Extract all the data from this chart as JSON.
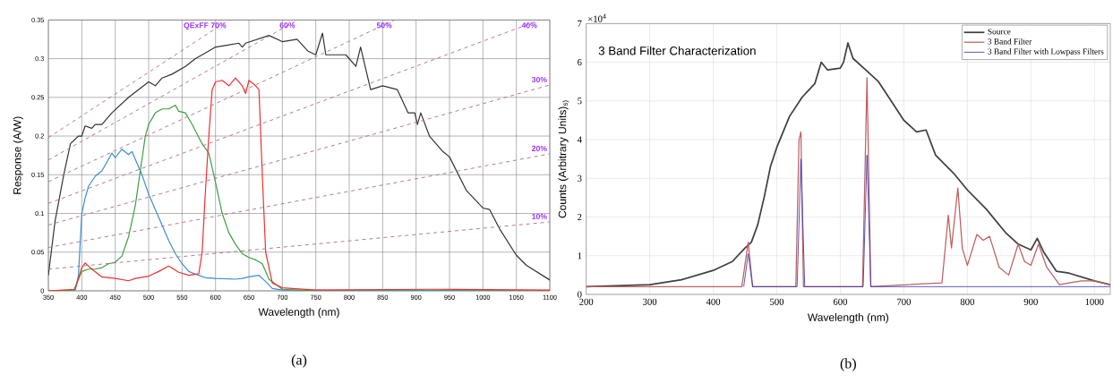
{
  "chart_data": [
    {
      "type": "line",
      "xlabel": "Wavelength (nm)",
      "ylabel": "Response (A/W)",
      "xlim": [
        350,
        1100
      ],
      "ylim": [
        0,
        0.35
      ],
      "xticks": [
        350,
        400,
        450,
        500,
        550,
        600,
        650,
        700,
        750,
        800,
        850,
        900,
        950,
        1000,
        1050,
        1100
      ],
      "yticks": [
        0,
        0.05,
        0.1,
        0.15,
        0.2,
        0.25,
        0.3,
        0.35
      ],
      "grid": true,
      "series": [
        {
          "color": "#333333",
          "x": [
            350,
            360,
            373,
            383,
            395,
            400,
            405,
            415,
            420,
            430,
            445,
            470,
            500,
            510,
            520,
            535,
            555,
            570,
            590,
            600,
            635,
            640,
            645,
            680,
            700,
            722,
            738,
            750,
            760,
            765,
            795,
            805,
            810,
            817,
            832,
            850,
            872,
            888,
            898,
            902,
            907,
            920,
            940,
            950,
            975,
            1000,
            1010,
            1025,
            1050,
            1065,
            1100
          ],
          "values": [
            0.02,
            0.09,
            0.15,
            0.19,
            0.2,
            0.2,
            0.213,
            0.21,
            0.215,
            0.215,
            0.23,
            0.25,
            0.27,
            0.265,
            0.275,
            0.28,
            0.29,
            0.3,
            0.31,
            0.315,
            0.32,
            0.315,
            0.32,
            0.33,
            0.322,
            0.325,
            0.31,
            0.305,
            0.333,
            0.305,
            0.305,
            0.295,
            0.29,
            0.315,
            0.26,
            0.265,
            0.26,
            0.23,
            0.23,
            0.215,
            0.23,
            0.2,
            0.18,
            0.173,
            0.13,
            0.107,
            0.105,
            0.08,
            0.046,
            0.033,
            0.014
          ]
        },
        {
          "color": "#3a8fd0",
          "x": [
            350,
            390,
            395,
            400,
            405,
            410,
            420,
            430,
            440,
            445,
            450,
            460,
            470,
            475,
            480,
            490,
            500,
            510,
            520,
            530,
            540,
            550,
            560,
            575,
            585,
            600,
            630,
            640,
            650,
            665,
            675,
            685,
            700,
            1100
          ],
          "values": [
            0,
            0,
            0.02,
            0.1,
            0.12,
            0.135,
            0.148,
            0.155,
            0.17,
            0.178,
            0.172,
            0.183,
            0.176,
            0.18,
            0.17,
            0.15,
            0.125,
            0.105,
            0.085,
            0.065,
            0.048,
            0.035,
            0.025,
            0.02,
            0.017,
            0.016,
            0.015,
            0.016,
            0.018,
            0.02,
            0.012,
            0.003,
            0.001,
            0
          ]
        },
        {
          "color": "#3aa040",
          "x": [
            350,
            388,
            395,
            400,
            410,
            420,
            430,
            440,
            450,
            460,
            470,
            480,
            490,
            495,
            500,
            510,
            520,
            530,
            540,
            545,
            555,
            565,
            580,
            590,
            600,
            610,
            620,
            630,
            640,
            650,
            660,
            670,
            680,
            700,
            750,
            1100
          ],
          "values": [
            0,
            0.001,
            0.015,
            0.025,
            0.028,
            0.028,
            0.03,
            0.035,
            0.037,
            0.045,
            0.07,
            0.11,
            0.17,
            0.2,
            0.215,
            0.23,
            0.235,
            0.235,
            0.24,
            0.232,
            0.23,
            0.215,
            0.19,
            0.178,
            0.14,
            0.1,
            0.075,
            0.06,
            0.048,
            0.043,
            0.04,
            0.035,
            0.015,
            0.002,
            0,
            0
          ]
        },
        {
          "color": "#f03030",
          "x": [
            350,
            390,
            400,
            405,
            415,
            430,
            450,
            470,
            480,
            500,
            515,
            530,
            545,
            560,
            575,
            580,
            585,
            590,
            595,
            600,
            610,
            620,
            630,
            640,
            645,
            650,
            660,
            665,
            670,
            675,
            685,
            700,
            750,
            920,
            1100
          ],
          "values": [
            0,
            0.002,
            0.03,
            0.036,
            0.028,
            0.018,
            0.016,
            0.013,
            0.016,
            0.019,
            0.025,
            0.032,
            0.024,
            0.02,
            0.022,
            0.05,
            0.13,
            0.2,
            0.26,
            0.27,
            0.272,
            0.265,
            0.275,
            0.265,
            0.255,
            0.272,
            0.265,
            0.26,
            0.15,
            0.05,
            0.01,
            0.004,
            0.001,
            0.002,
            0.001
          ]
        },
        {
          "name": "QExFF 70%",
          "color": "#b0708c",
          "line_style": "dashed",
          "x": [
            350,
            620
          ],
          "values": [
            0.198,
            0.35
          ]
        },
        {
          "name": "60%",
          "color": "#b0708c",
          "line_style": "dashed",
          "x": [
            350,
            723
          ],
          "values": [
            0.169,
            0.35
          ]
        },
        {
          "name": "50%",
          "color": "#b0708c",
          "line_style": "dashed",
          "x": [
            350,
            868
          ],
          "values": [
            0.141,
            0.35
          ]
        },
        {
          "name": "40%",
          "color": "#b0708c",
          "line_style": "dashed",
          "x": [
            350,
            1085
          ],
          "values": [
            0.113,
            0.35
          ]
        },
        {
          "name": "30%",
          "color": "#b0708c",
          "line_style": "dashed",
          "x": [
            350,
            1100
          ],
          "values": [
            0.085,
            0.266
          ]
        },
        {
          "name": "20%",
          "color": "#b0708c",
          "line_style": "dashed",
          "x": [
            350,
            1100
          ],
          "values": [
            0.056,
            0.177
          ]
        },
        {
          "name": "10%",
          "color": "#b0708c",
          "line_style": "dashed",
          "x": [
            350,
            1100
          ],
          "values": [
            0.028,
            0.089
          ]
        }
      ],
      "annotations": [
        "(a)"
      ]
    },
    {
      "type": "line",
      "title": "3 Band Filter Characterization",
      "xlabel": "Wavelength (nm)",
      "ylabel": "Counts (Arbitrary Units)$_{s)}$",
      "xlim": [
        200,
        1025
      ],
      "ylim": [
        0,
        7
      ],
      "xticks": [
        200,
        300,
        400,
        500,
        600,
        700,
        800,
        900,
        1000
      ],
      "yticks": [
        0,
        1,
        2,
        3,
        4,
        5,
        6,
        7
      ],
      "grid": true,
      "legend": "top right",
      "series": [
        {
          "name": "Source",
          "color": "#404040",
          "x": [
            200,
            300,
            350,
            400,
            430,
            450,
            460,
            470,
            480,
            490,
            500,
            520,
            540,
            560,
            570,
            580,
            600,
            605,
            612,
            620,
            640,
            660,
            680,
            700,
            720,
            735,
            750,
            780,
            800,
            830,
            860,
            880,
            900,
            910,
            920,
            940,
            960,
            980,
            1000,
            1025
          ],
          "values": [
            0.2,
            0.25,
            0.38,
            0.62,
            0.85,
            1.2,
            1.35,
            1.8,
            2.5,
            3.3,
            3.8,
            4.6,
            5.1,
            5.45,
            6.0,
            5.8,
            5.85,
            6.0,
            6.5,
            6.1,
            5.8,
            5.5,
            5.0,
            4.5,
            4.2,
            4.25,
            3.6,
            3.1,
            2.7,
            2.2,
            1.6,
            1.3,
            1.15,
            1.45,
            1.1,
            0.6,
            0.55,
            0.45,
            0.35,
            0.25
          ]
        },
        {
          "name": "3 Band Filter",
          "color": "#c06060",
          "x": [
            200,
            445,
            455,
            462,
            530,
            535,
            538,
            542,
            635,
            642,
            648,
            760,
            770,
            775,
            785,
            792,
            800,
            815,
            825,
            835,
            850,
            865,
            880,
            890,
            900,
            912,
            925,
            945,
            960,
            980,
            1000,
            1025
          ],
          "values": [
            0.2,
            0.2,
            1.35,
            0.2,
            0.2,
            4.0,
            4.2,
            0.2,
            0.2,
            5.6,
            0.2,
            0.3,
            2.05,
            1.2,
            2.75,
            1.2,
            0.75,
            1.55,
            1.4,
            1.5,
            0.7,
            0.5,
            1.3,
            0.85,
            0.75,
            1.3,
            0.7,
            0.25,
            0.3,
            0.35,
            0.35,
            0.25
          ]
        },
        {
          "name": "3 Band Filter with Lowpass Filters",
          "color": "#3030b0",
          "x": [
            448,
            455,
            462,
            532,
            538,
            544,
            636,
            642,
            648,
            1025
          ],
          "values": [
            0.2,
            1.05,
            0.2,
            0.2,
            3.5,
            0.2,
            0.2,
            3.6,
            0.2,
            0.2
          ]
        }
      ],
      "annotations": [
        "×10$^{4}$",
        "(b)"
      ]
    }
  ]
}
